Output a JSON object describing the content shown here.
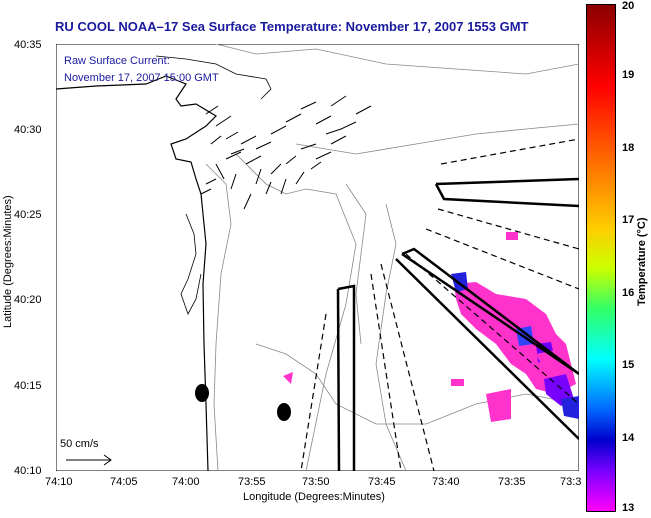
{
  "title": "RU COOL  NOAA–17  Sea Surface Temperature:  November 17, 2007 1553 GMT",
  "info": {
    "line1": "Raw Surface Current:",
    "line2": "November 17, 2007 15:00 GMT"
  },
  "axes": {
    "xlabel": "Longitude (Degrees:Minutes)",
    "ylabel": "Latitude (Degrees:Minutes)",
    "xticks": [
      "74:10",
      "74:05",
      "74:00",
      "73:55",
      "73:50",
      "73:45",
      "73:40",
      "73:35",
      "73:3"
    ],
    "yticks": [
      "40:35",
      "40:30",
      "40:25",
      "40:20",
      "40:15",
      "40:10"
    ]
  },
  "scale": {
    "label": "50 cm/s"
  },
  "colorbar": {
    "label": "Temperature (°C)",
    "ticks": [
      "20",
      "19",
      "18",
      "17",
      "16",
      "15",
      "14",
      "13"
    ]
  }
}
